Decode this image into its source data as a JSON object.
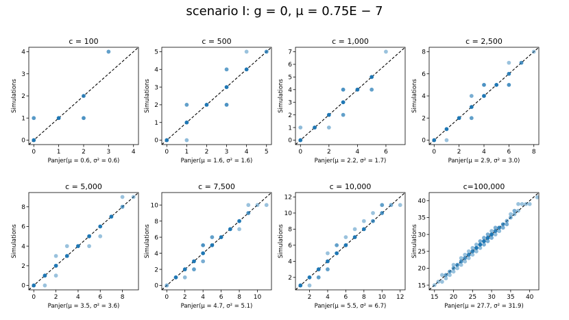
{
  "figure": {
    "suptitle": "scenario I: g = 0, μ = 0.75E − 7"
  },
  "chart_data": [
    {
      "type": "scatter",
      "title": "c = 100",
      "xlabel": "Panjer(μ = 0.6, σ² = 0.6)",
      "ylabel": "Simulations",
      "xlim": [
        -0.2,
        4.2
      ],
      "ylim": [
        -0.2,
        4.2
      ],
      "xticks": [
        0,
        1,
        2,
        3,
        4
      ],
      "yticks": [
        0,
        1,
        2,
        3,
        4
      ],
      "reference_line": "y = x",
      "points": [
        {
          "x": 0,
          "y": 0,
          "alpha": 1.0
        },
        {
          "x": 0,
          "y": 1,
          "alpha": 0.75
        },
        {
          "x": 1,
          "y": 1,
          "alpha": 1.0
        },
        {
          "x": 2,
          "y": 1,
          "alpha": 0.8
        },
        {
          "x": 2,
          "y": 2,
          "alpha": 0.9
        },
        {
          "x": 3,
          "y": 4,
          "alpha": 0.7
        }
      ]
    },
    {
      "type": "scatter",
      "title": "c = 500",
      "xlabel": "Panjer(μ = 1.6, σ² = 1.6)",
      "ylabel": "Simulations",
      "xlim": [
        -0.25,
        5.25
      ],
      "ylim": [
        -0.25,
        5.25
      ],
      "xticks": [
        0,
        1,
        2,
        3,
        4,
        5
      ],
      "yticks": [
        0,
        1,
        2,
        3,
        4,
        5
      ],
      "reference_line": "y = x",
      "points": [
        {
          "x": 0,
          "y": 0,
          "alpha": 1.0
        },
        {
          "x": 1,
          "y": 0,
          "alpha": 0.5
        },
        {
          "x": 1,
          "y": 1,
          "alpha": 1.0
        },
        {
          "x": 1,
          "y": 2,
          "alpha": 0.7
        },
        {
          "x": 2,
          "y": 2,
          "alpha": 1.0
        },
        {
          "x": 3,
          "y": 2,
          "alpha": 0.8
        },
        {
          "x": 3,
          "y": 3,
          "alpha": 1.0
        },
        {
          "x": 3,
          "y": 4,
          "alpha": 0.7
        },
        {
          "x": 4,
          "y": 4,
          "alpha": 1.0
        },
        {
          "x": 4,
          "y": 5,
          "alpha": 0.45
        },
        {
          "x": 5,
          "y": 5,
          "alpha": 0.8
        }
      ]
    },
    {
      "type": "scatter",
      "title": "c = 1,000",
      "xlabel": "Panjer(μ = 2.2, σ² = 1.7)",
      "ylabel": "Simulations",
      "xlim": [
        -0.35,
        7.35
      ],
      "ylim": [
        -0.35,
        7.35
      ],
      "xticks": [
        0,
        2,
        4,
        6
      ],
      "yticks": [
        0,
        1,
        2,
        3,
        4,
        5,
        6,
        7
      ],
      "reference_line": "y = x",
      "points": [
        {
          "x": 0,
          "y": 0,
          "alpha": 1.0
        },
        {
          "x": 0,
          "y": 1,
          "alpha": 0.5
        },
        {
          "x": 1,
          "y": 1,
          "alpha": 1.0
        },
        {
          "x": 2,
          "y": 1,
          "alpha": 0.5
        },
        {
          "x": 2,
          "y": 2,
          "alpha": 1.0
        },
        {
          "x": 3,
          "y": 2,
          "alpha": 0.7
        },
        {
          "x": 3,
          "y": 3,
          "alpha": 1.0
        },
        {
          "x": 3,
          "y": 4,
          "alpha": 0.8
        },
        {
          "x": 4,
          "y": 4,
          "alpha": 1.0
        },
        {
          "x": 5,
          "y": 4,
          "alpha": 0.7
        },
        {
          "x": 5,
          "y": 5,
          "alpha": 1.0
        },
        {
          "x": 6,
          "y": 7,
          "alpha": 0.45
        }
      ]
    },
    {
      "type": "scatter",
      "title": "c = 2,500",
      "xlabel": "Panjer(μ = 2.9, σ² = 3.0)",
      "ylabel": "Simulations",
      "xlim": [
        -0.4,
        8.4
      ],
      "ylim": [
        -0.4,
        8.4
      ],
      "xticks": [
        0,
        2,
        4,
        6,
        8
      ],
      "yticks": [
        0,
        2,
        4,
        6,
        8
      ],
      "reference_line": "y = x",
      "points": [
        {
          "x": 0,
          "y": 0,
          "alpha": 1.0
        },
        {
          "x": 1,
          "y": 0,
          "alpha": 0.45
        },
        {
          "x": 1,
          "y": 1,
          "alpha": 1.0
        },
        {
          "x": 2,
          "y": 2,
          "alpha": 1.0
        },
        {
          "x": 3,
          "y": 2,
          "alpha": 0.7
        },
        {
          "x": 3,
          "y": 3,
          "alpha": 1.0
        },
        {
          "x": 3,
          "y": 4,
          "alpha": 0.6
        },
        {
          "x": 4,
          "y": 4,
          "alpha": 1.0
        },
        {
          "x": 4,
          "y": 5,
          "alpha": 0.8
        },
        {
          "x": 5,
          "y": 5,
          "alpha": 1.0
        },
        {
          "x": 6,
          "y": 5,
          "alpha": 0.8
        },
        {
          "x": 6,
          "y": 6,
          "alpha": 0.9
        },
        {
          "x": 6,
          "y": 7,
          "alpha": 0.45
        },
        {
          "x": 7,
          "y": 7,
          "alpha": 0.8
        },
        {
          "x": 8,
          "y": 8,
          "alpha": 0.45
        }
      ]
    },
    {
      "type": "scatter",
      "title": "c = 5,000",
      "xlabel": "Panjer(μ = 3.5, σ² = 3.6)",
      "ylabel": "Simulations",
      "xlim": [
        -0.45,
        9.45
      ],
      "ylim": [
        -0.45,
        9.45
      ],
      "xticks": [
        0,
        2,
        4,
        6,
        8
      ],
      "yticks": [
        0,
        2,
        4,
        6,
        8
      ],
      "reference_line": "y = x",
      "points": [
        {
          "x": 0,
          "y": 0,
          "alpha": 1.0
        },
        {
          "x": 1,
          "y": 0,
          "alpha": 0.45
        },
        {
          "x": 1,
          "y": 1,
          "alpha": 1.0
        },
        {
          "x": 2,
          "y": 1,
          "alpha": 0.45
        },
        {
          "x": 2,
          "y": 2,
          "alpha": 1.0
        },
        {
          "x": 2,
          "y": 3,
          "alpha": 0.45
        },
        {
          "x": 3,
          "y": 3,
          "alpha": 1.0
        },
        {
          "x": 3,
          "y": 4,
          "alpha": 0.45
        },
        {
          "x": 4,
          "y": 4,
          "alpha": 1.0
        },
        {
          "x": 5,
          "y": 4,
          "alpha": 0.45
        },
        {
          "x": 5,
          "y": 5,
          "alpha": 1.0
        },
        {
          "x": 6,
          "y": 5,
          "alpha": 0.45
        },
        {
          "x": 6,
          "y": 6,
          "alpha": 1.0
        },
        {
          "x": 7,
          "y": 7,
          "alpha": 1.0
        },
        {
          "x": 8,
          "y": 8,
          "alpha": 0.7
        },
        {
          "x": 8,
          "y": 9,
          "alpha": 0.45
        },
        {
          "x": 9,
          "y": 9,
          "alpha": 0.45
        }
      ]
    },
    {
      "type": "scatter",
      "title": "c = 7,500",
      "xlabel": "Panjer(μ = 4.7, σ² = 5.1)",
      "ylabel": "Simulations",
      "xlim": [
        -0.55,
        11.55
      ],
      "ylim": [
        -0.55,
        11.55
      ],
      "xticks": [
        0,
        2,
        4,
        6,
        8,
        10
      ],
      "yticks": [
        0,
        2,
        4,
        6,
        8,
        10
      ],
      "reference_line": "y = x",
      "points": [
        {
          "x": 0,
          "y": 0,
          "alpha": 0.6
        },
        {
          "x": 1,
          "y": 1,
          "alpha": 1.0
        },
        {
          "x": 2,
          "y": 1,
          "alpha": 0.5
        },
        {
          "x": 2,
          "y": 2,
          "alpha": 1.0
        },
        {
          "x": 3,
          "y": 2,
          "alpha": 0.7
        },
        {
          "x": 3,
          "y": 3,
          "alpha": 1.0
        },
        {
          "x": 4,
          "y": 3,
          "alpha": 0.6
        },
        {
          "x": 4,
          "y": 4,
          "alpha": 1.0
        },
        {
          "x": 4,
          "y": 5,
          "alpha": 0.8
        },
        {
          "x": 5,
          "y": 5,
          "alpha": 1.0
        },
        {
          "x": 5,
          "y": 6,
          "alpha": 0.7
        },
        {
          "x": 6,
          "y": 6,
          "alpha": 1.0
        },
        {
          "x": 7,
          "y": 7,
          "alpha": 1.0
        },
        {
          "x": 8,
          "y": 7,
          "alpha": 0.45
        },
        {
          "x": 8,
          "y": 8,
          "alpha": 1.0
        },
        {
          "x": 9,
          "y": 9,
          "alpha": 0.8
        },
        {
          "x": 9,
          "y": 10,
          "alpha": 0.45
        },
        {
          "x": 10,
          "y": 10,
          "alpha": 0.45
        },
        {
          "x": 11,
          "y": 10,
          "alpha": 0.45
        }
      ]
    },
    {
      "type": "scatter",
      "title": "c = 10,000",
      "xlabel": "Panjer(μ = 5.5, σ² = 6.7)",
      "ylabel": "Simulations",
      "xlim": [
        0.45,
        12.55
      ],
      "ylim": [
        0.45,
        12.55
      ],
      "xticks": [
        2,
        4,
        6,
        8,
        10,
        12
      ],
      "yticks": [
        2,
        4,
        6,
        8,
        10,
        12
      ],
      "reference_line": "y = x",
      "points": [
        {
          "x": 1,
          "y": 1,
          "alpha": 1.0
        },
        {
          "x": 2,
          "y": 1,
          "alpha": 0.45
        },
        {
          "x": 2,
          "y": 2,
          "alpha": 1.0
        },
        {
          "x": 3,
          "y": 2,
          "alpha": 0.7
        },
        {
          "x": 3,
          "y": 3,
          "alpha": 1.0
        },
        {
          "x": 4,
          "y": 3,
          "alpha": 0.7
        },
        {
          "x": 4,
          "y": 4,
          "alpha": 1.0
        },
        {
          "x": 4,
          "y": 5,
          "alpha": 0.45
        },
        {
          "x": 5,
          "y": 5,
          "alpha": 1.0
        },
        {
          "x": 5,
          "y": 6,
          "alpha": 0.7
        },
        {
          "x": 6,
          "y": 6,
          "alpha": 1.0
        },
        {
          "x": 6,
          "y": 7,
          "alpha": 0.45
        },
        {
          "x": 7,
          "y": 7,
          "alpha": 1.0
        },
        {
          "x": 7,
          "y": 8,
          "alpha": 0.45
        },
        {
          "x": 8,
          "y": 8,
          "alpha": 1.0
        },
        {
          "x": 8,
          "y": 9,
          "alpha": 0.45
        },
        {
          "x": 9,
          "y": 9,
          "alpha": 0.8
        },
        {
          "x": 9,
          "y": 10,
          "alpha": 0.45
        },
        {
          "x": 10,
          "y": 10,
          "alpha": 0.8
        },
        {
          "x": 10,
          "y": 11,
          "alpha": 0.7
        },
        {
          "x": 11,
          "y": 11,
          "alpha": 0.6
        },
        {
          "x": 12,
          "y": 11,
          "alpha": 0.45
        }
      ]
    },
    {
      "type": "scatter",
      "title": "c=100,000",
      "xlabel": "Panjer(μ = 27.7, σ² = 31.9)",
      "ylabel": "Simulations",
      "xlim": [
        13.6,
        42.4
      ],
      "ylim": [
        13.6,
        42.4
      ],
      "xticks": [
        15,
        20,
        25,
        30,
        35,
        40
      ],
      "yticks": [
        15,
        20,
        25,
        30,
        35,
        40
      ],
      "reference_line": "y = x",
      "points": [
        {
          "x": 15,
          "y": 15,
          "alpha": 0.45
        },
        {
          "x": 16,
          "y": 16,
          "alpha": 0.45
        },
        {
          "x": 17,
          "y": 16,
          "alpha": 0.45
        },
        {
          "x": 17,
          "y": 18,
          "alpha": 0.45
        },
        {
          "x": 18,
          "y": 17,
          "alpha": 0.45
        },
        {
          "x": 18,
          "y": 18,
          "alpha": 0.7
        },
        {
          "x": 19,
          "y": 18,
          "alpha": 0.45
        },
        {
          "x": 19,
          "y": 19,
          "alpha": 0.7
        },
        {
          "x": 20,
          "y": 19,
          "alpha": 0.45
        },
        {
          "x": 20,
          "y": 20,
          "alpha": 0.7
        },
        {
          "x": 20,
          "y": 21,
          "alpha": 0.45
        },
        {
          "x": 21,
          "y": 20,
          "alpha": 0.45
        },
        {
          "x": 21,
          "y": 21,
          "alpha": 0.8
        },
        {
          "x": 22,
          "y": 21,
          "alpha": 0.45
        },
        {
          "x": 22,
          "y": 22,
          "alpha": 0.8
        },
        {
          "x": 22,
          "y": 23,
          "alpha": 0.45
        },
        {
          "x": 23,
          "y": 22,
          "alpha": 0.45
        },
        {
          "x": 23,
          "y": 23,
          "alpha": 0.8
        },
        {
          "x": 23,
          "y": 24,
          "alpha": 0.45
        },
        {
          "x": 24,
          "y": 23,
          "alpha": 0.45
        },
        {
          "x": 24,
          "y": 24,
          "alpha": 0.9
        },
        {
          "x": 24,
          "y": 25,
          "alpha": 0.45
        },
        {
          "x": 25,
          "y": 24,
          "alpha": 0.45
        },
        {
          "x": 25,
          "y": 25,
          "alpha": 0.9
        },
        {
          "x": 25,
          "y": 26,
          "alpha": 0.5
        },
        {
          "x": 26,
          "y": 25,
          "alpha": 0.5
        },
        {
          "x": 26,
          "y": 26,
          "alpha": 1.0
        },
        {
          "x": 26,
          "y": 27,
          "alpha": 0.5
        },
        {
          "x": 27,
          "y": 26,
          "alpha": 0.5
        },
        {
          "x": 27,
          "y": 27,
          "alpha": 1.0
        },
        {
          "x": 27,
          "y": 28,
          "alpha": 0.6
        },
        {
          "x": 28,
          "y": 27,
          "alpha": 0.6
        },
        {
          "x": 28,
          "y": 28,
          "alpha": 1.0
        },
        {
          "x": 28,
          "y": 29,
          "alpha": 0.6
        },
        {
          "x": 29,
          "y": 28,
          "alpha": 0.6
        },
        {
          "x": 29,
          "y": 29,
          "alpha": 1.0
        },
        {
          "x": 29,
          "y": 30,
          "alpha": 0.6
        },
        {
          "x": 30,
          "y": 29,
          "alpha": 0.6
        },
        {
          "x": 30,
          "y": 30,
          "alpha": 1.0
        },
        {
          "x": 30,
          "y": 31,
          "alpha": 0.5
        },
        {
          "x": 31,
          "y": 30,
          "alpha": 0.5
        },
        {
          "x": 31,
          "y": 31,
          "alpha": 0.9
        },
        {
          "x": 31,
          "y": 32,
          "alpha": 0.6
        },
        {
          "x": 32,
          "y": 31,
          "alpha": 0.5
        },
        {
          "x": 32,
          "y": 32,
          "alpha": 0.9
        },
        {
          "x": 33,
          "y": 32,
          "alpha": 0.6
        },
        {
          "x": 33,
          "y": 33,
          "alpha": 0.8
        },
        {
          "x": 34,
          "y": 33,
          "alpha": 0.6
        },
        {
          "x": 34,
          "y": 34,
          "alpha": 0.6
        },
        {
          "x": 35,
          "y": 35,
          "alpha": 0.6
        },
        {
          "x": 35,
          "y": 36,
          "alpha": 0.45
        },
        {
          "x": 36,
          "y": 36,
          "alpha": 0.5
        },
        {
          "x": 36,
          "y": 37,
          "alpha": 0.6
        },
        {
          "x": 37,
          "y": 37,
          "alpha": 0.45
        },
        {
          "x": 37,
          "y": 39,
          "alpha": 0.45
        },
        {
          "x": 38,
          "y": 39,
          "alpha": 0.45
        },
        {
          "x": 39,
          "y": 39,
          "alpha": 0.45
        },
        {
          "x": 40,
          "y": 39,
          "alpha": 0.45
        },
        {
          "x": 42,
          "y": 41,
          "alpha": 0.45
        }
      ]
    }
  ],
  "style": {
    "point_color": "#1f77b4",
    "reference_line_color": "#000000",
    "axes_color": "#000000"
  }
}
